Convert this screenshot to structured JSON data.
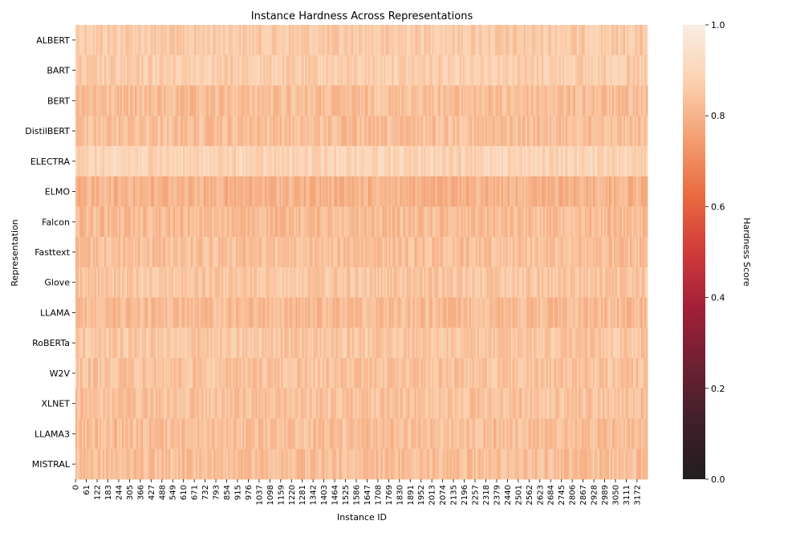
{
  "chart_data": {
    "type": "heatmap",
    "title": "Instance Hardness Across Representations",
    "xlabel": "Instance ID",
    "ylabel": "Representation",
    "rows": [
      "ALBERT",
      "BART",
      "BERT",
      "DistilBERT",
      "ELECTRA",
      "ELMO",
      "Falcon",
      "Fasttext",
      "Glove",
      "LLAMA",
      "RoBERTa",
      "W2V",
      "XLNET",
      "LLAMA3",
      "MISTRAL"
    ],
    "row_mean_values": [
      0.86,
      0.87,
      0.83,
      0.83,
      0.89,
      0.8,
      0.82,
      0.83,
      0.85,
      0.82,
      0.85,
      0.84,
      0.84,
      0.83,
      0.83
    ],
    "x_range": [
      0,
      3232
    ],
    "x_tick_labels": [
      "0",
      "61",
      "122",
      "183",
      "244",
      "305",
      "366",
      "427",
      "488",
      "549",
      "610",
      "671",
      "732",
      "793",
      "854",
      "915",
      "976",
      "1037",
      "1098",
      "1159",
      "1220",
      "1281",
      "1342",
      "1403",
      "1464",
      "1525",
      "1586",
      "1647",
      "1708",
      "1769",
      "1830",
      "1891",
      "1952",
      "2013",
      "2074",
      "2135",
      "2196",
      "2257",
      "2318",
      "2379",
      "2440",
      "2501",
      "2562",
      "2623",
      "2684",
      "2745",
      "2806",
      "2867",
      "2928",
      "2989",
      "3050",
      "3111",
      "3172"
    ],
    "colorbar": {
      "label": "Hardness Score",
      "range": [
        0.0,
        1.0
      ],
      "tick_labels": [
        "0.0",
        "0.2",
        "0.4",
        "0.6",
        "0.8",
        "1.0"
      ],
      "colormap_stops": [
        "#211e1f",
        "#3f1f2b",
        "#6d2131",
        "#a11f39",
        "#d03b3a",
        "#ea6a41",
        "#f39f71",
        "#fbd1b0",
        "#faeee3"
      ]
    }
  }
}
